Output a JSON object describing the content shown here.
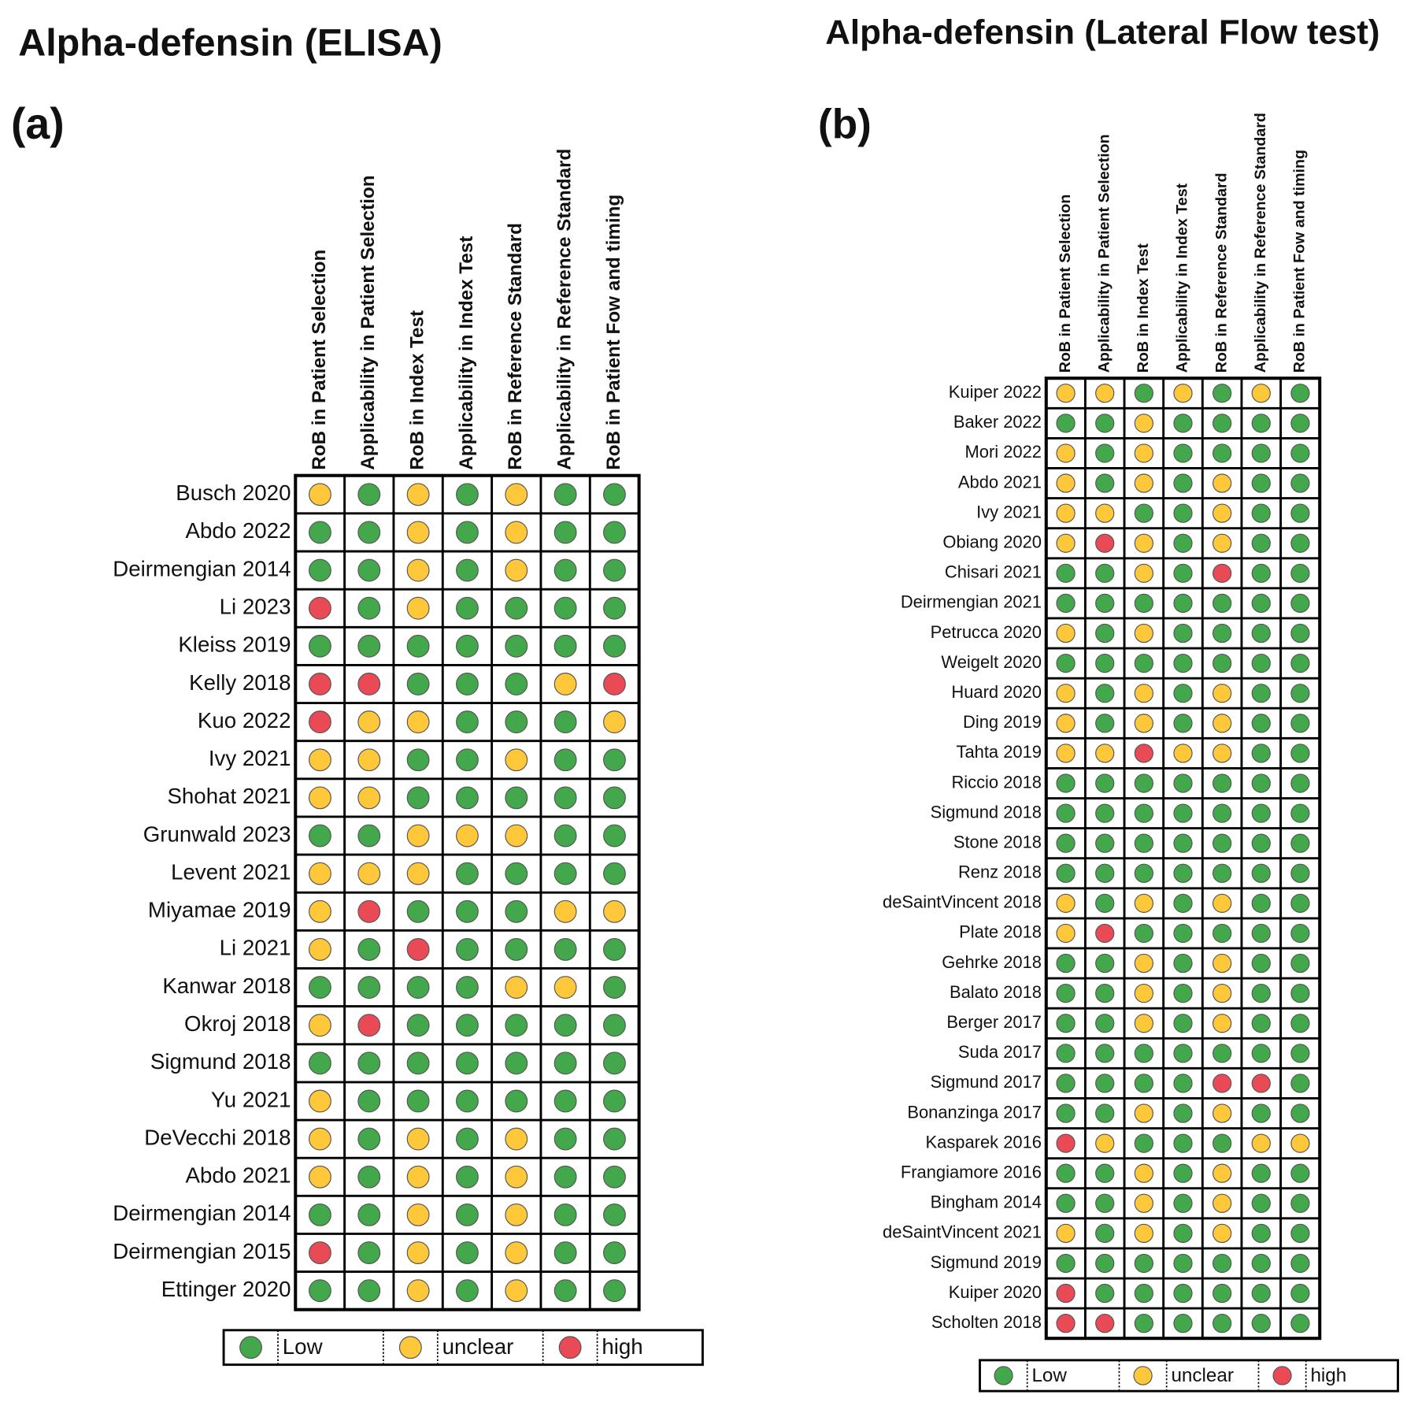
{
  "panels": [
    {
      "title": "Alpha-defensin (ELISA)",
      "tag": "(a)",
      "columns": [
        "RoB in Patient Selection",
        "Applicability in Patient Selection",
        "RoB in Index Test",
        "Applicability in Index Test",
        "RoB in Reference Standard",
        "Applicability in Reference Standard",
        "RoB in Patient Fow and timing"
      ],
      "rows": [
        {
          "study": "Busch 2020",
          "cells": [
            "unclear",
            "Low",
            "unclear",
            "Low",
            "unclear",
            "Low",
            "Low"
          ]
        },
        {
          "study": "Abdo  2022",
          "cells": [
            "Low",
            "Low",
            "unclear",
            "Low",
            "unclear",
            "Low",
            "Low"
          ]
        },
        {
          "study": "Deirmengian 2014",
          "cells": [
            "Low",
            "Low",
            "unclear",
            "Low",
            "unclear",
            "Low",
            "Low"
          ]
        },
        {
          "study": "Li 2023",
          "cells": [
            "high",
            "Low",
            "unclear",
            "Low",
            "Low",
            "Low",
            "Low"
          ]
        },
        {
          "study": "Kleiss 2019",
          "cells": [
            "Low",
            "Low",
            "Low",
            "Low",
            "Low",
            "Low",
            "Low"
          ]
        },
        {
          "study": "Kelly 2018",
          "cells": [
            "high",
            "high",
            "Low",
            "Low",
            "Low",
            "unclear",
            "high"
          ]
        },
        {
          "study": "Kuo 2022",
          "cells": [
            "high",
            "unclear",
            "unclear",
            "Low",
            "Low",
            "Low",
            "unclear"
          ]
        },
        {
          "study": "Ivy 2021",
          "cells": [
            "unclear",
            "unclear",
            "Low",
            "Low",
            "unclear",
            "Low",
            "Low"
          ]
        },
        {
          "study": "Shohat 2021",
          "cells": [
            "unclear",
            "unclear",
            "Low",
            "Low",
            "Low",
            "Low",
            "Low"
          ]
        },
        {
          "study": "Grunwald 2023",
          "cells": [
            "Low",
            "Low",
            "unclear",
            "unclear",
            "unclear",
            "Low",
            "Low"
          ]
        },
        {
          "study": "Levent 2021",
          "cells": [
            "unclear",
            "unclear",
            "unclear",
            "Low",
            "Low",
            "Low",
            "Low"
          ]
        },
        {
          "study": "Miyamae 2019",
          "cells": [
            "unclear",
            "high",
            "Low",
            "Low",
            "Low",
            "unclear",
            "unclear"
          ]
        },
        {
          "study": "Li 2021",
          "cells": [
            "unclear",
            "Low",
            "high",
            "Low",
            "Low",
            "Low",
            "Low"
          ]
        },
        {
          "study": "Kanwar 2018",
          "cells": [
            "Low",
            "Low",
            "Low",
            "Low",
            "unclear",
            "unclear",
            "Low"
          ]
        },
        {
          "study": "Okroj 2018",
          "cells": [
            "unclear",
            "high",
            "Low",
            "Low",
            "Low",
            "Low",
            "Low"
          ]
        },
        {
          "study": "Sigmund 2018",
          "cells": [
            "Low",
            "Low",
            "Low",
            "Low",
            "Low",
            "Low",
            "Low"
          ]
        },
        {
          "study": "Yu 2021",
          "cells": [
            "unclear",
            "Low",
            "Low",
            "Low",
            "Low",
            "Low",
            "Low"
          ]
        },
        {
          "study": "DeVecchi 2018",
          "cells": [
            "unclear",
            "Low",
            "unclear",
            "Low",
            "unclear",
            "Low",
            "Low"
          ]
        },
        {
          "study": "Abdo  2021",
          "cells": [
            "unclear",
            "Low",
            "unclear",
            "Low",
            "unclear",
            "Low",
            "Low"
          ]
        },
        {
          "study": "Deirmengian 2014",
          "cells": [
            "Low",
            "Low",
            "unclear",
            "Low",
            "unclear",
            "Low",
            "Low"
          ]
        },
        {
          "study": "Deirmengian 2015",
          "cells": [
            "high",
            "Low",
            "unclear",
            "Low",
            "unclear",
            "Low",
            "Low"
          ]
        },
        {
          "study": "Ettinger 2020",
          "cells": [
            "Low",
            "Low",
            "unclear",
            "Low",
            "unclear",
            "Low",
            "Low"
          ]
        }
      ],
      "legend": [
        {
          "label": "Low",
          "color": "#43a84c"
        },
        {
          "label": "unclear",
          "color": "#ffc83a"
        },
        {
          "label": "high",
          "color": "#e94a55"
        }
      ]
    },
    {
      "title": "Alpha-defensin (Lateral Flow test)",
      "tag": "(b)",
      "columns": [
        "RoB in Patient Selection",
        "Applicability in Patient Selection",
        "RoB in Index Test",
        "Applicability in Index Test",
        "RoB in Reference Standard",
        "Applicability in Reference Standard",
        "RoB in Patient Fow and timing"
      ],
      "rows": [
        {
          "study": "Kuiper 2022",
          "cells": [
            "unclear",
            "unclear",
            "Low",
            "unclear",
            "Low",
            "unclear",
            "Low"
          ]
        },
        {
          "study": "Baker 2022",
          "cells": [
            "Low",
            "Low",
            "unclear",
            "Low",
            "Low",
            "Low",
            "Low"
          ]
        },
        {
          "study": "Mori 2022",
          "cells": [
            "unclear",
            "Low",
            "unclear",
            "Low",
            "Low",
            "Low",
            "Low"
          ]
        },
        {
          "study": "Abdo 2021",
          "cells": [
            "unclear",
            "Low",
            "unclear",
            "Low",
            "unclear",
            "Low",
            "Low"
          ]
        },
        {
          "study": "Ivy 2021",
          "cells": [
            "unclear",
            "unclear",
            "Low",
            "Low",
            "unclear",
            "Low",
            "Low"
          ]
        },
        {
          "study": "Obiang 2020",
          "cells": [
            "unclear",
            "high",
            "unclear",
            "Low",
            "unclear",
            "Low",
            "Low"
          ]
        },
        {
          "study": "Chisari 2021",
          "cells": [
            "Low",
            "Low",
            "unclear",
            "Low",
            "high",
            "Low",
            "Low"
          ]
        },
        {
          "study": "Deirmengian 2021",
          "cells": [
            "Low",
            "Low",
            "Low",
            "Low",
            "Low",
            "Low",
            "Low"
          ]
        },
        {
          "study": "Petrucca 2020",
          "cells": [
            "unclear",
            "Low",
            "unclear",
            "Low",
            "Low",
            "Low",
            "Low"
          ]
        },
        {
          "study": "Weigelt 2020",
          "cells": [
            "Low",
            "Low",
            "Low",
            "Low",
            "Low",
            "Low",
            "Low"
          ]
        },
        {
          "study": "Huard 2020",
          "cells": [
            "unclear",
            "Low",
            "unclear",
            "Low",
            "unclear",
            "Low",
            "Low"
          ]
        },
        {
          "study": "Ding 2019",
          "cells": [
            "unclear",
            "Low",
            "unclear",
            "Low",
            "unclear",
            "Low",
            "Low"
          ]
        },
        {
          "study": "Tahta 2019",
          "cells": [
            "unclear",
            "unclear",
            "high",
            "unclear",
            "unclear",
            "Low",
            "Low"
          ]
        },
        {
          "study": "Riccio 2018",
          "cells": [
            "Low",
            "Low",
            "Low",
            "Low",
            "Low",
            "Low",
            "Low"
          ]
        },
        {
          "study": "Sigmund 2018",
          "cells": [
            "Low",
            "Low",
            "Low",
            "Low",
            "Low",
            "Low",
            "Low"
          ]
        },
        {
          "study": "Stone 2018",
          "cells": [
            "Low",
            "Low",
            "Low",
            "Low",
            "Low",
            "Low",
            "Low"
          ]
        },
        {
          "study": "Renz 2018",
          "cells": [
            "Low",
            "Low",
            "Low",
            "Low",
            "Low",
            "Low",
            "Low"
          ]
        },
        {
          "study": "deSaintVincent 2018",
          "cells": [
            "unclear",
            "Low",
            "unclear",
            "Low",
            "unclear",
            "Low",
            "Low"
          ]
        },
        {
          "study": "Plate 2018",
          "cells": [
            "unclear",
            "high",
            "Low",
            "Low",
            "Low",
            "Low",
            "Low"
          ]
        },
        {
          "study": "Gehrke 2018",
          "cells": [
            "Low",
            "Low",
            "unclear",
            "Low",
            "unclear",
            "Low",
            "Low"
          ]
        },
        {
          "study": "Balato 2018",
          "cells": [
            "Low",
            "Low",
            "unclear",
            "Low",
            "unclear",
            "Low",
            "Low"
          ]
        },
        {
          "study": "Berger 2017",
          "cells": [
            "Low",
            "Low",
            "unclear",
            "Low",
            "unclear",
            "Low",
            "Low"
          ]
        },
        {
          "study": "Suda 2017",
          "cells": [
            "Low",
            "Low",
            "Low",
            "Low",
            "Low",
            "Low",
            "Low"
          ]
        },
        {
          "study": "Sigmund 2017",
          "cells": [
            "Low",
            "Low",
            "Low",
            "Low",
            "high",
            "high",
            "Low"
          ]
        },
        {
          "study": "Bonanzinga 2017",
          "cells": [
            "Low",
            "Low",
            "unclear",
            "Low",
            "unclear",
            "Low",
            "Low"
          ]
        },
        {
          "study": "Kasparek 2016",
          "cells": [
            "high",
            "unclear",
            "Low",
            "Low",
            "Low",
            "unclear",
            "unclear"
          ]
        },
        {
          "study": "Frangiamore 2016",
          "cells": [
            "Low",
            "Low",
            "unclear",
            "Low",
            "unclear",
            "Low",
            "Low"
          ]
        },
        {
          "study": "Bingham 2014",
          "cells": [
            "Low",
            "Low",
            "unclear",
            "Low",
            "unclear",
            "Low",
            "Low"
          ]
        },
        {
          "study": "deSaintVincent 2021",
          "cells": [
            "unclear",
            "Low",
            "unclear",
            "Low",
            "unclear",
            "Low",
            "Low"
          ]
        },
        {
          "study": "Sigmund 2019",
          "cells": [
            "Low",
            "Low",
            "Low",
            "Low",
            "Low",
            "Low",
            "Low"
          ]
        },
        {
          "study": "Kuiper 2020",
          "cells": [
            "high",
            "Low",
            "Low",
            "Low",
            "Low",
            "Low",
            "Low"
          ]
        },
        {
          "study": "Scholten 2018",
          "cells": [
            "high",
            "high",
            "Low",
            "Low",
            "Low",
            "Low",
            "Low"
          ]
        }
      ],
      "legend": [
        {
          "label": "Low",
          "color": "#43a84c"
        },
        {
          "label": "unclear",
          "color": "#ffc83a"
        },
        {
          "label": "high",
          "color": "#e94a55"
        }
      ]
    }
  ]
}
